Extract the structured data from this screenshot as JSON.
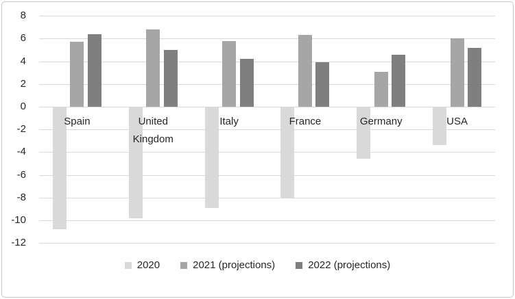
{
  "chart_data": {
    "type": "bar",
    "title": "",
    "xlabel": "",
    "ylabel": "",
    "categories": [
      "Spain",
      "United Kingdom",
      "Italy",
      "France",
      "Germany",
      "USA"
    ],
    "series": [
      {
        "name": "2020",
        "color": "#d9d9d9",
        "values": [
          -10.8,
          -9.8,
          -8.9,
          -8.0,
          -4.6,
          -3.4
        ]
      },
      {
        "name": "2021 (projections)",
        "color": "#a6a6a6",
        "values": [
          5.7,
          6.8,
          5.8,
          6.3,
          3.1,
          6.0
        ]
      },
      {
        "name": "2022 (projections)",
        "color": "#7f7f7f",
        "values": [
          6.4,
          5.0,
          4.2,
          3.9,
          4.6,
          5.2
        ]
      }
    ],
    "ylim": [
      -12,
      8
    ],
    "yticks": [
      8,
      6,
      4,
      2,
      0,
      -2,
      -4,
      -6,
      -8,
      -10,
      -12
    ],
    "grid": true,
    "legend_position": "bottom"
  },
  "colors": {
    "background": "#ffffff",
    "frame_border": "#c6c6c6",
    "gridline": "#d9d9d9",
    "text": "#262626"
  }
}
